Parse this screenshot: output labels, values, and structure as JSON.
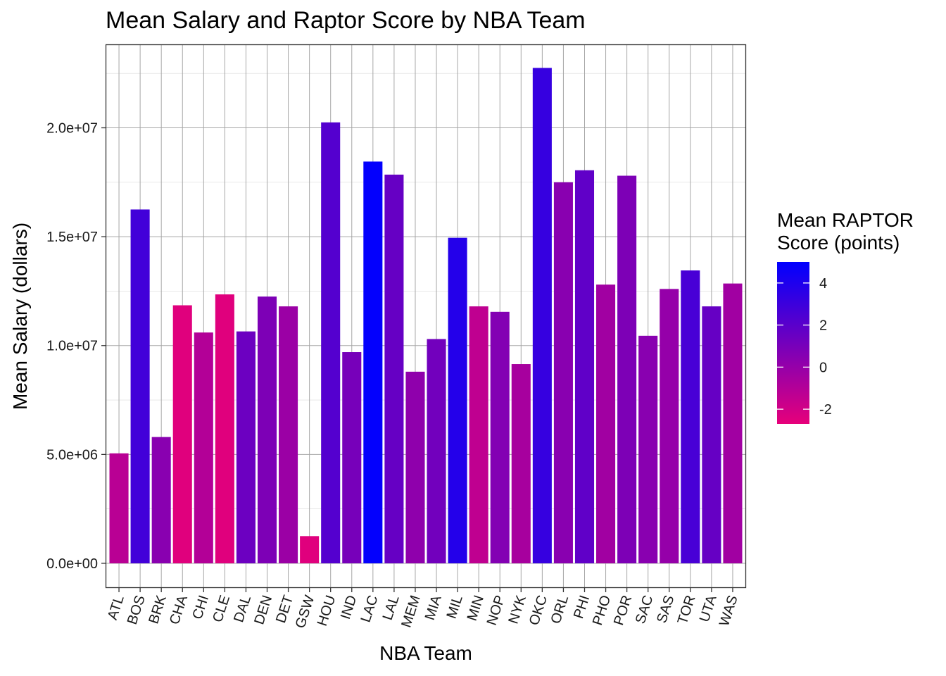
{
  "chart_data": {
    "type": "bar",
    "title": "Mean Salary and Raptor Score by NBA Team",
    "xlabel": "NBA Team",
    "ylabel": "Mean Salary (dollars)",
    "ylim": [
      -1100000,
      23800000
    ],
    "y_ticks": [
      0,
      5000000,
      10000000,
      15000000,
      20000000
    ],
    "y_tick_labels": [
      "0.0e+00",
      "5.0e+06",
      "1.0e+07",
      "1.5e+07",
      "2.0e+07"
    ],
    "grid": true,
    "categories": [
      "ATL",
      "BOS",
      "BRK",
      "CHA",
      "CHI",
      "CLE",
      "DAL",
      "DEN",
      "DET",
      "GSW",
      "HOU",
      "IND",
      "LAC",
      "LAL",
      "MEM",
      "MIA",
      "MIL",
      "MIN",
      "NOP",
      "NYK",
      "OKC",
      "ORL",
      "PHI",
      "PHO",
      "POR",
      "SAC",
      "SAS",
      "TOR",
      "UTA",
      "WAS"
    ],
    "values": [
      5050000,
      16250000,
      5800000,
      11850000,
      10600000,
      12350000,
      10650000,
      12250000,
      11800000,
      1250000,
      20250000,
      9700000,
      18450000,
      17850000,
      8800000,
      10300000,
      14950000,
      11800000,
      11550000,
      9150000,
      22750000,
      17500000,
      18050000,
      12800000,
      17800000,
      10450000,
      12600000,
      13450000,
      11800000,
      12850000
    ],
    "color_values": [
      -1.2,
      2.8,
      0.4,
      -2.5,
      -1.0,
      -2.5,
      1.4,
      0.8,
      -0.2,
      -2.5,
      2.2,
      1.0,
      4.9,
      1.6,
      0.2,
      1.2,
      3.8,
      -1.4,
      0.6,
      -0.6,
      3.2,
      0.4,
      1.8,
      -0.4,
      0.8,
      0.4,
      0.0,
      2.6,
      1.6,
      -0.4
    ],
    "legend": {
      "title_lines": [
        "Mean RAPTOR",
        "Score (points)"
      ],
      "position": "right",
      "scale_min": -2.7,
      "scale_max": 5.0,
      "color_low": "#e6007a",
      "color_high": "#0000ff",
      "breaks": [
        4,
        2,
        0,
        -2
      ],
      "break_labels": [
        "4",
        "2",
        "0",
        "-2"
      ]
    }
  }
}
